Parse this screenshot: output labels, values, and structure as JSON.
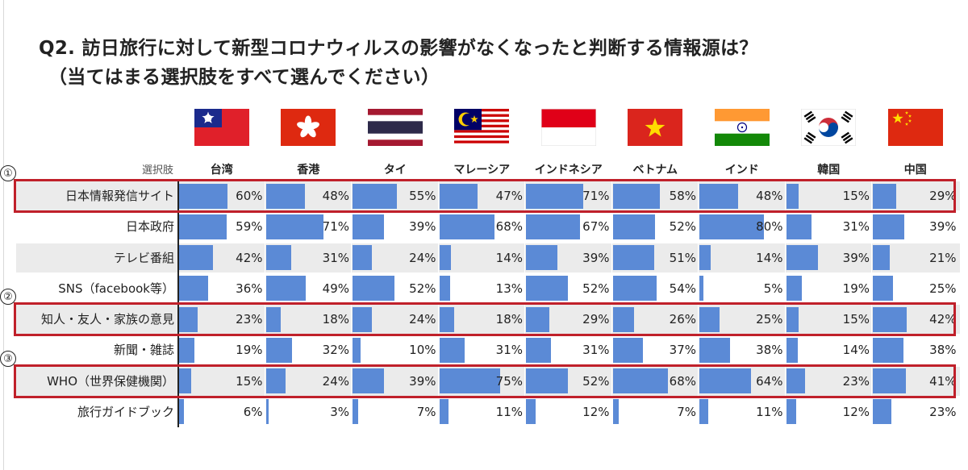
{
  "title_line1": "Q2. 訪日旅行に対して新型コロナウィルスの影響がなくなったと判断する情報源は？",
  "title_line2": "（当てはまる選択肢をすべて選んでください）",
  "header_label": "選択肢",
  "circle_markers": [
    "①",
    "②",
    "③"
  ],
  "flags": [
    {
      "country": "台湾",
      "icon": "taiwan-flag-icon"
    },
    {
      "country": "香港",
      "icon": "hong-kong-flag-icon"
    },
    {
      "country": "タイ",
      "icon": "thailand-flag-icon"
    },
    {
      "country": "マレーシア",
      "icon": "malaysia-flag-icon"
    },
    {
      "country": "インドネシア",
      "icon": "indonesia-flag-icon"
    },
    {
      "country": "ベトナム",
      "icon": "vietnam-flag-icon"
    },
    {
      "country": "インド",
      "icon": "india-flag-icon"
    },
    {
      "country": "韓国",
      "icon": "korea-flag-icon"
    },
    {
      "country": "中国",
      "icon": "china-flag-icon"
    }
  ],
  "colors": {
    "bar": "#5b8ad6",
    "highlight": "#c0202a",
    "row_shade": "#ebebeb"
  },
  "chart_data": {
    "type": "bar",
    "orientation": "horizontal-table",
    "title": "Q2. 訪日旅行に対して新型コロナウィルスの影響がなくなったと判断する情報源は？（当てはまる選択肢をすべて選んでください）",
    "columns": [
      "台湾",
      "香港",
      "タイ",
      "マレーシア",
      "インドネシア",
      "ベトナム",
      "インド",
      "韓国",
      "中国"
    ],
    "unit": "%",
    "xlim": [
      0,
      100
    ],
    "rows": [
      {
        "label": "日本情報発信サイト",
        "values": [
          60,
          48,
          55,
          47,
          71,
          58,
          48,
          15,
          29
        ],
        "shaded": true,
        "highlight": true,
        "marker": "①"
      },
      {
        "label": "日本政府",
        "values": [
          59,
          71,
          39,
          68,
          67,
          52,
          80,
          31,
          39
        ],
        "shaded": false,
        "highlight": false,
        "marker": ""
      },
      {
        "label": "テレビ番組",
        "values": [
          42,
          31,
          24,
          14,
          39,
          51,
          14,
          39,
          21
        ],
        "shaded": true,
        "highlight": false,
        "marker": ""
      },
      {
        "label": "SNS（facebook等）",
        "values": [
          36,
          49,
          52,
          13,
          52,
          54,
          5,
          19,
          25
        ],
        "shaded": false,
        "highlight": false,
        "marker": ""
      },
      {
        "label": "知人・友人・家族の意見",
        "values": [
          23,
          18,
          24,
          18,
          29,
          26,
          25,
          15,
          42
        ],
        "shaded": true,
        "highlight": true,
        "marker": "②"
      },
      {
        "label": "新聞・雑誌",
        "values": [
          19,
          32,
          10,
          31,
          31,
          37,
          38,
          14,
          38
        ],
        "shaded": false,
        "highlight": false,
        "marker": ""
      },
      {
        "label": "WHO（世界保健機関）",
        "values": [
          15,
          24,
          39,
          75,
          52,
          68,
          64,
          23,
          41
        ],
        "shaded": true,
        "highlight": true,
        "marker": "③"
      },
      {
        "label": "旅行ガイドブック",
        "values": [
          6,
          3,
          7,
          11,
          12,
          7,
          11,
          12,
          23
        ],
        "shaded": false,
        "highlight": false,
        "marker": ""
      }
    ]
  }
}
